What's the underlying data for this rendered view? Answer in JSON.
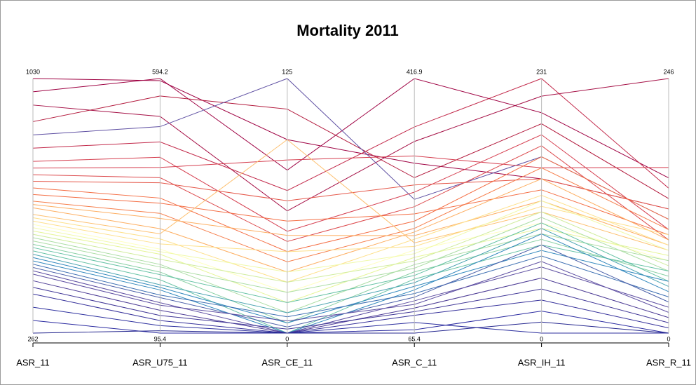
{
  "chart_data": {
    "type": "parallel",
    "title": "Mortality 2011",
    "axes": [
      {
        "name": "ASR_11",
        "min": 262,
        "max": 1030
      },
      {
        "name": "ASR_U75_11",
        "min": 95.4,
        "max": 594.2
      },
      {
        "name": "ASR_CE_11",
        "min": 0,
        "max": 125
      },
      {
        "name": "ASR_C_11",
        "min": 65.4,
        "max": 416.9
      },
      {
        "name": "ASR_IH_11",
        "min": 0,
        "max": 231
      },
      {
        "name": "ASR_R_11",
        "min": 0,
        "max": 246
      }
    ],
    "series": [
      {
        "color": "#9e0142",
        "values": [
          1030,
          590,
          95,
          300,
          140,
          120
        ]
      },
      {
        "color": "#9e0142",
        "values": [
          990,
          594.2,
          80,
          416.9,
          200,
          150
        ]
      },
      {
        "color": "#a50f45",
        "values": [
          950,
          520,
          60,
          330,
          215,
          246
        ]
      },
      {
        "color": "#b2183b",
        "values": [
          900,
          560,
          110,
          280,
          190,
          130
        ]
      },
      {
        "color": "#5e4fa2",
        "values": [
          860,
          500,
          125,
          250,
          160,
          110
        ]
      },
      {
        "color": "#c2294a",
        "values": [
          820,
          470,
          70,
          350,
          231,
          140
        ]
      },
      {
        "color": "#d53e4f",
        "values": [
          780,
          440,
          50,
          260,
          180,
          100
        ]
      },
      {
        "color": "#d53e4f",
        "values": [
          760,
          420,
          85,
          310,
          150,
          160
        ]
      },
      {
        "color": "#dc494c",
        "values": [
          740,
          400,
          45,
          240,
          170,
          90
        ]
      },
      {
        "color": "#e55749",
        "values": [
          720,
          390,
          65,
          270,
          140,
          120
        ]
      },
      {
        "color": "#f46d43",
        "values": [
          700,
          360,
          40,
          220,
          160,
          110
        ]
      },
      {
        "color": "#f46d43",
        "values": [
          680,
          350,
          55,
          230,
          130,
          95
        ]
      },
      {
        "color": "#f67e4b",
        "values": [
          660,
          330,
          35,
          210,
          150,
          100
        ]
      },
      {
        "color": "#fdae61",
        "values": [
          650,
          320,
          48,
          200,
          120,
          85
        ]
      },
      {
        "color": "#fdae61",
        "values": [
          640,
          300,
          30,
          205,
          140,
          90
        ]
      },
      {
        "color": "#fdc070",
        "values": [
          620,
          290,
          95,
          190,
          110,
          80
        ]
      },
      {
        "color": "#fee08b",
        "values": [
          610,
          280,
          25,
          195,
          125,
          85
        ]
      },
      {
        "color": "#fee08b",
        "values": [
          600,
          270,
          40,
          185,
          115,
          95
        ]
      },
      {
        "color": "#ffffbf",
        "values": [
          590,
          260,
          20,
          180,
          100,
          70
        ]
      },
      {
        "color": "#f0f9a8",
        "values": [
          580,
          255,
          30,
          175,
          120,
          80
        ]
      },
      {
        "color": "#e6f598",
        "values": [
          570,
          250,
          15,
          170,
          95,
          75
        ]
      },
      {
        "color": "#d0ec9c",
        "values": [
          560,
          240,
          25,
          165,
          110,
          65
        ]
      },
      {
        "color": "#abdda4",
        "values": [
          550,
          230,
          10,
          160,
          90,
          70
        ]
      },
      {
        "color": "#abdda4",
        "values": [
          540,
          225,
          20,
          155,
          105,
          60
        ]
      },
      {
        "color": "#89d0a4",
        "values": [
          530,
          215,
          5,
          150,
          85,
          55
        ]
      },
      {
        "color": "#66c2a5",
        "values": [
          520,
          210,
          15,
          145,
          100,
          50
        ]
      },
      {
        "color": "#66c2a5",
        "values": [
          510,
          200,
          0,
          140,
          80,
          60
        ]
      },
      {
        "color": "#4ba4b1",
        "values": [
          500,
          190,
          10,
          135,
          95,
          45
        ]
      },
      {
        "color": "#3288bd",
        "values": [
          490,
          185,
          5,
          130,
          75,
          50
        ]
      },
      {
        "color": "#3288bd",
        "values": [
          480,
          180,
          0,
          125,
          90,
          40
        ]
      },
      {
        "color": "#3d6fb2",
        "values": [
          470,
          170,
          8,
          120,
          70,
          35
        ]
      },
      {
        "color": "#4a5fa8",
        "values": [
          460,
          165,
          3,
          115,
          80,
          30
        ]
      },
      {
        "color": "#5e4fa2",
        "values": [
          450,
          155,
          0,
          110,
          60,
          25
        ]
      },
      {
        "color": "#5e4fa2",
        "values": [
          440,
          150,
          6,
          105,
          65,
          20
        ]
      },
      {
        "color": "#4b3a94",
        "values": [
          420,
          140,
          0,
          100,
          50,
          15
        ]
      },
      {
        "color": "#3f3596",
        "values": [
          400,
          130,
          2,
          95,
          40,
          10
        ]
      },
      {
        "color": "#35309a",
        "values": [
          380,
          120,
          0,
          90,
          30,
          5
        ]
      },
      {
        "color": "#2c2f9e",
        "values": [
          340,
          110,
          0,
          80,
          0,
          0
        ]
      },
      {
        "color": "#2a2aa0",
        "values": [
          300,
          95.4,
          0,
          70,
          20,
          0
        ]
      },
      {
        "color": "#25278f",
        "values": [
          262,
          100,
          0,
          65.4,
          10,
          0
        ]
      }
    ]
  }
}
